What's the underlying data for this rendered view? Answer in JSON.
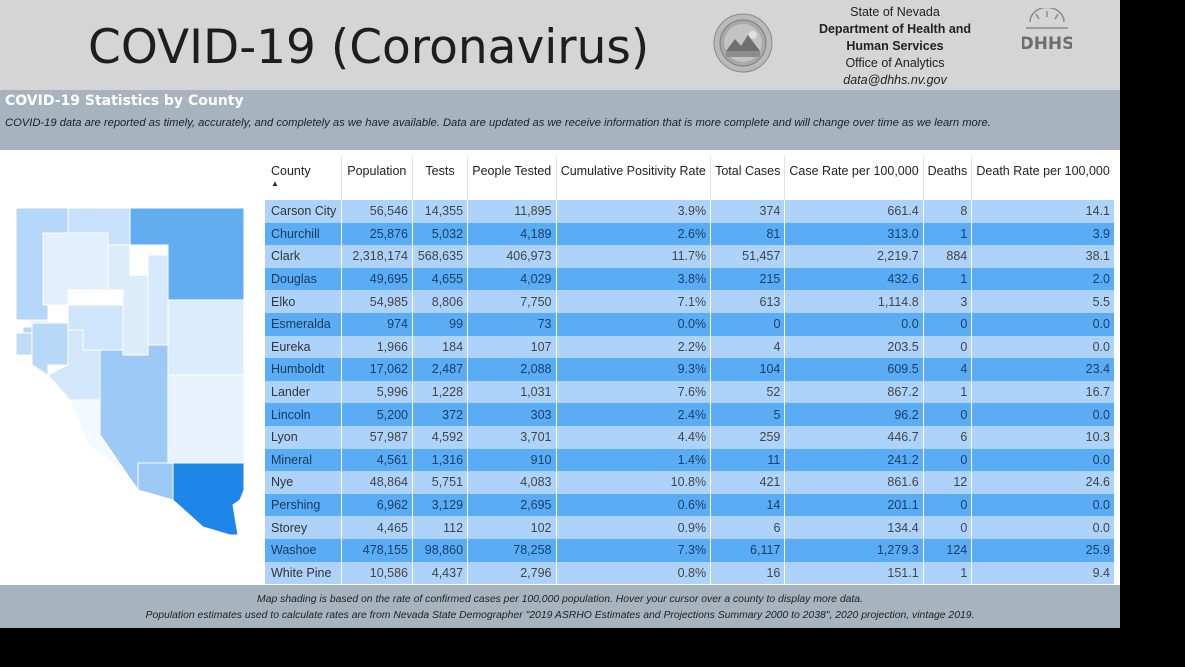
{
  "header": {
    "title": "COVID-19 (Coronavirus)",
    "agency": {
      "line1": "State of Nevada",
      "line2": "Department of Health and",
      "line3": "Human Services",
      "line4": "Office of Analytics",
      "email": "data@dhhs.nv.gov"
    },
    "logo_text": "DHHS"
  },
  "section": {
    "title": "COVID-19 Statistics by County",
    "disclaimer": "COVID-19 data are reported as timely, accurately, and completely as we have available.  Data are updated as we receive information that is more complete and will change over time as we learn more."
  },
  "table": {
    "columns": [
      "County",
      "Population",
      "Tests",
      "People Tested",
      "Cumulative Positivity Rate",
      "Total Cases",
      "Case Rate per 100,000",
      "Deaths",
      "Death Rate per 100,000"
    ],
    "sort_indicator": "▲",
    "rows": [
      [
        "Carson City",
        "56,546",
        "14,355",
        "11,895",
        "3.9%",
        "374",
        "661.4",
        "8",
        "14.1"
      ],
      [
        "Churchill",
        "25,876",
        "5,032",
        "4,189",
        "2.6%",
        "81",
        "313.0",
        "1",
        "3.9"
      ],
      [
        "Clark",
        "2,318,174",
        "568,635",
        "406,973",
        "11.7%",
        "51,457",
        "2,219.7",
        "884",
        "38.1"
      ],
      [
        "Douglas",
        "49,695",
        "4,655",
        "4,029",
        "3.8%",
        "215",
        "432.6",
        "1",
        "2.0"
      ],
      [
        "Elko",
        "54,985",
        "8,806",
        "7,750",
        "7.1%",
        "613",
        "1,114.8",
        "3",
        "5.5"
      ],
      [
        "Esmeralda",
        "974",
        "99",
        "73",
        "0.0%",
        "0",
        "0.0",
        "0",
        "0.0"
      ],
      [
        "Eureka",
        "1,966",
        "184",
        "107",
        "2.2%",
        "4",
        "203.5",
        "0",
        "0.0"
      ],
      [
        "Humboldt",
        "17,062",
        "2,487",
        "2,088",
        "9.3%",
        "104",
        "609.5",
        "4",
        "23.4"
      ],
      [
        "Lander",
        "5,996",
        "1,228",
        "1,031",
        "7.6%",
        "52",
        "867.2",
        "1",
        "16.7"
      ],
      [
        "Lincoln",
        "5,200",
        "372",
        "303",
        "2.4%",
        "5",
        "96.2",
        "0",
        "0.0"
      ],
      [
        "Lyon",
        "57,987",
        "4,592",
        "3,701",
        "4.4%",
        "259",
        "446.7",
        "6",
        "10.3"
      ],
      [
        "Mineral",
        "4,561",
        "1,316",
        "910",
        "1.4%",
        "11",
        "241.2",
        "0",
        "0.0"
      ],
      [
        "Nye",
        "48,864",
        "5,751",
        "4,083",
        "10.8%",
        "421",
        "861.6",
        "12",
        "24.6"
      ],
      [
        "Pershing",
        "6,962",
        "3,129",
        "2,695",
        "0.6%",
        "14",
        "201.1",
        "0",
        "0.0"
      ],
      [
        "Storey",
        "4,465",
        "112",
        "102",
        "0.9%",
        "6",
        "134.4",
        "0",
        "0.0"
      ],
      [
        "Washoe",
        "478,155",
        "98,860",
        "78,258",
        "7.3%",
        "6,117",
        "1,279.3",
        "124",
        "25.9"
      ],
      [
        "White Pine",
        "10,586",
        "4,437",
        "2,796",
        "0.8%",
        "16",
        "151.1",
        "1",
        "9.4"
      ]
    ]
  },
  "map": {
    "colors": {
      "washoe": "#b4d6f8",
      "humboldt": "#c8e1fa",
      "elko": "#62acf0",
      "pershing": "#e2effc",
      "lander": "#dcecfb",
      "eureka": "#d7e9fb",
      "whitepine": "#dbecfc",
      "churchill": "#cfe5fb",
      "storey": "#e6f1fd",
      "carson": "#b9d9f8",
      "douglas": "#bedbf9",
      "lyon": "#b8d8f8",
      "mineral": "#d3e7fb",
      "nye": "#9cc9f5",
      "esmeralda": "#f4f9fe",
      "lincoln": "#e7f2fd",
      "clark": "#1f86e9"
    }
  },
  "footer": {
    "line1": "Map shading is based on the rate of confirmed cases per 100,000 population.  Hover your cursor over a county to display more data.",
    "line2": "Population estimates used to calculate rates are from Nevada State Demographer \"2019 ASRHO Estimates and Projections Summary 2000 to 2038\", 2020 projection, vintage 2019."
  }
}
